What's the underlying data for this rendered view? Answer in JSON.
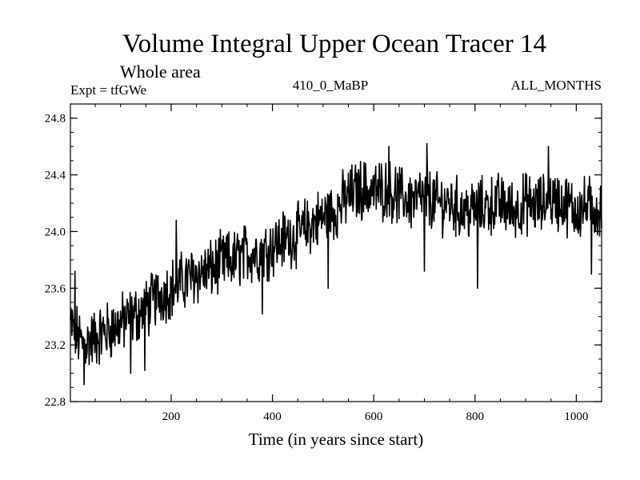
{
  "chart_data": {
    "type": "line",
    "title": "Volume Integral Upper Ocean Tracer 14",
    "subtitle": "Whole area",
    "left_label": "Expt = tfGWe",
    "center_label": "410_0_MaBP",
    "right_label": "ALL_MONTHS",
    "xlabel": "Time (in years since start)",
    "ylabel": "",
    "xlim": [
      1,
      1050
    ],
    "ylim": [
      22.8,
      24.9
    ],
    "x_ticks": [
      200,
      400,
      600,
      800,
      1000
    ],
    "x_tick_labels": [
      "200",
      "400",
      "600",
      "800",
      "1000"
    ],
    "y_ticks": [
      22.8,
      23.2,
      23.6,
      24.0,
      24.4,
      24.8
    ],
    "y_tick_labels": [
      "22.8",
      "23.2",
      "23.6",
      "24.0",
      "24.4",
      "24.8"
    ],
    "series": [
      {
        "name": "Tracer 14",
        "color": "#000000",
        "x": [
          1,
          25,
          50,
          75,
          100,
          125,
          150,
          175,
          200,
          225,
          250,
          275,
          300,
          325,
          350,
          375,
          400,
          425,
          450,
          475,
          500,
          525,
          550,
          575,
          600,
          625,
          650,
          675,
          700,
          725,
          750,
          775,
          800,
          825,
          850,
          875,
          900,
          925,
          950,
          975,
          1000,
          1025,
          1050
        ],
        "values": [
          23.35,
          23.2,
          23.25,
          23.3,
          23.35,
          23.4,
          23.45,
          23.55,
          23.6,
          23.65,
          23.7,
          23.72,
          23.78,
          23.8,
          23.85,
          23.85,
          23.9,
          23.95,
          23.98,
          24.05,
          24.1,
          24.15,
          24.25,
          24.3,
          24.28,
          24.3,
          24.25,
          24.22,
          24.25,
          24.2,
          24.2,
          24.15,
          24.15,
          24.18,
          24.2,
          24.15,
          24.2,
          24.18,
          24.22,
          24.2,
          24.15,
          24.18,
          24.15
        ]
      }
    ],
    "annotations": [
      {
        "x": 10,
        "value": 23.72
      },
      {
        "x": 28,
        "value": 22.92
      },
      {
        "x": 120,
        "value": 23.0
      },
      {
        "x": 148,
        "value": 23.02
      },
      {
        "x": 210,
        "value": 24.08
      },
      {
        "x": 380,
        "value": 23.42
      },
      {
        "x": 510,
        "value": 23.6
      },
      {
        "x": 630,
        "value": 24.6
      },
      {
        "x": 700,
        "value": 23.72
      },
      {
        "x": 705,
        "value": 24.62
      },
      {
        "x": 805,
        "value": 23.6
      },
      {
        "x": 945,
        "value": 24.6
      },
      {
        "x": 1030,
        "value": 23.7
      }
    ]
  }
}
